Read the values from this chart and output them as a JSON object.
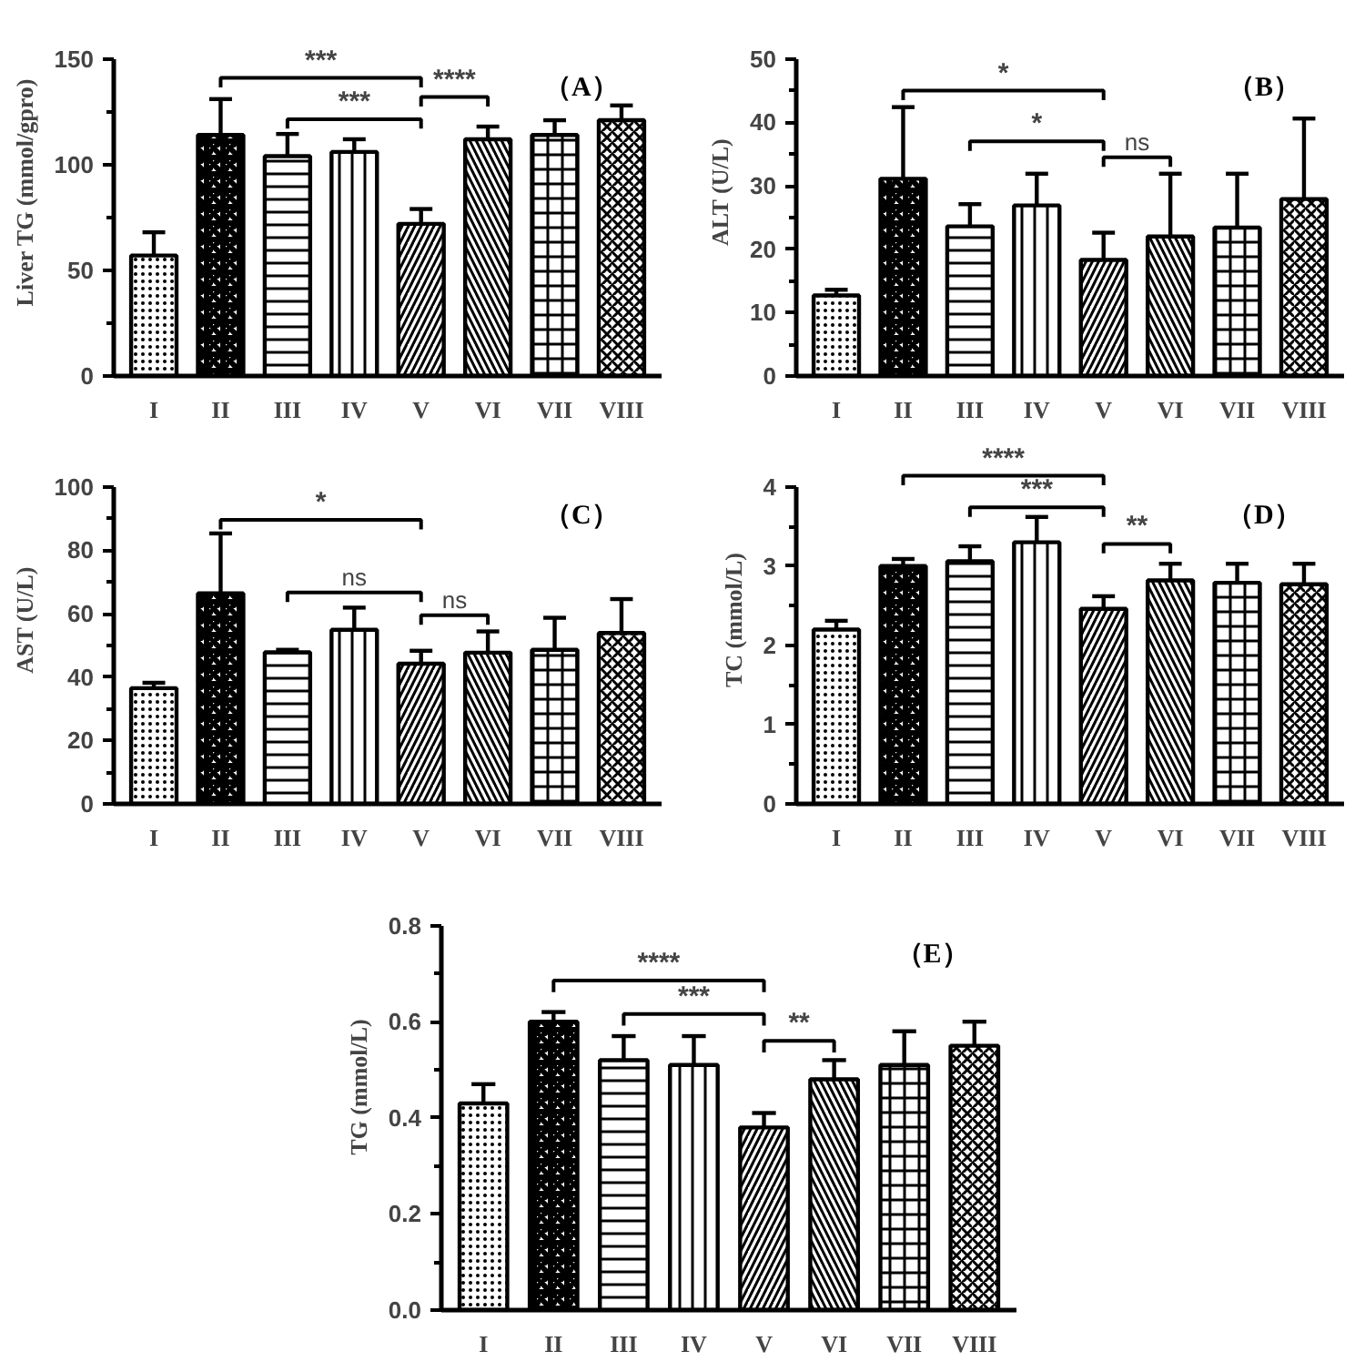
{
  "chart_data": [
    {
      "type": "bar",
      "title": "（A）",
      "ylabel": "Liver TG (mmol/gpro)",
      "categories": [
        "I",
        "II",
        "III",
        "IV",
        "V",
        "VI",
        "VII",
        "VIII"
      ],
      "color": "#000000",
      "values": [
        57,
        114,
        104,
        106,
        72,
        112,
        114,
        121
      ],
      "errors": [
        [
          57,
          68
        ],
        [
          114,
          131
        ],
        [
          104,
          114.5
        ],
        [
          106,
          112
        ],
        [
          72,
          79
        ],
        [
          112,
          118
        ],
        [
          114,
          121
        ],
        [
          121,
          128
        ]
      ],
      "ylim": [
        0,
        150
      ],
      "yticks": [
        0,
        50,
        100,
        150
      ],
      "annotations": [
        "***",
        "***",
        "****"
      ]
    },
    {
      "type": "bar",
      "title": "（B）",
      "ylabel": "ALT (U/L)",
      "categories": [
        "I",
        "II",
        "III",
        "IV",
        "V",
        "VI",
        "VII",
        "VIII"
      ],
      "color": "#000000",
      "values": [
        12.7,
        31.1,
        23.6,
        26.9,
        18.3,
        22.0,
        23.4,
        27.9
      ],
      "errors": [
        [
          12.7,
          13.6
        ],
        [
          31.1,
          42.4
        ],
        [
          23.6,
          27.1
        ],
        [
          26.9,
          31.9
        ],
        [
          18.3,
          22.6
        ],
        [
          22.0,
          31.9
        ],
        [
          23.4,
          31.9
        ],
        [
          27.9,
          40.6
        ]
      ],
      "ylim": [
        0,
        50
      ],
      "yticks": [
        0,
        10,
        20,
        30,
        40,
        50
      ],
      "annotations": [
        "*",
        "*",
        "ns"
      ]
    },
    {
      "type": "bar",
      "title": "（C）",
      "ylabel": "AST (U/L)",
      "categories": [
        "I",
        "II",
        "III",
        "IV",
        "V",
        "VI",
        "VII",
        "VIII"
      ],
      "color": "#000000",
      "values": [
        36.5,
        66.4,
        47.8,
        54.9,
        44.2,
        47.7,
        48.6,
        53.9
      ],
      "errors": [
        [
          36.5,
          38.2
        ],
        [
          66.4,
          85.3
        ],
        [
          47.8,
          48.6
        ],
        [
          54.9,
          61.9
        ],
        [
          44.2,
          48.3
        ],
        [
          47.7,
          54.4
        ],
        [
          48.6,
          58.7
        ],
        [
          53.9,
          64.6
        ]
      ],
      "ylim": [
        0,
        100
      ],
      "yticks": [
        0,
        20,
        40,
        60,
        80,
        100
      ],
      "annotations": [
        "*",
        "ns",
        "ns"
      ]
    },
    {
      "type": "bar",
      "title": "（D）",
      "ylabel": "TC (mmol/L)",
      "categories": [
        "I",
        "II",
        "III",
        "IV",
        "V",
        "VI",
        "VII",
        "VIII"
      ],
      "color": "#000000",
      "values": [
        2.2,
        3.0,
        3.06,
        3.3,
        2.46,
        2.82,
        2.79,
        2.77
      ],
      "errors": [
        [
          2.2,
          2.31
        ],
        [
          3.0,
          3.09
        ],
        [
          3.06,
          3.25
        ],
        [
          3.3,
          3.62
        ],
        [
          2.46,
          2.62
        ],
        [
          2.82,
          3.03
        ],
        [
          2.79,
          3.03
        ],
        [
          2.77,
          3.03
        ]
      ],
      "ylim": [
        0,
        4
      ],
      "yticks": [
        0,
        1,
        2,
        3,
        4
      ],
      "annotations": [
        "****",
        "***",
        "**"
      ]
    },
    {
      "type": "bar",
      "title": "（E）",
      "ylabel": "TG (mmol/L)",
      "categories": [
        "I",
        "II",
        "III",
        "IV",
        "V",
        "VI",
        "VII",
        "VIII"
      ],
      "color": "#000000",
      "values": [
        0.43,
        0.6,
        0.52,
        0.51,
        0.38,
        0.48,
        0.51,
        0.55
      ],
      "errors": [
        [
          0.43,
          0.47
        ],
        [
          0.6,
          0.62
        ],
        [
          0.52,
          0.57
        ],
        [
          0.51,
          0.57
        ],
        [
          0.38,
          0.41
        ],
        [
          0.48,
          0.52
        ],
        [
          0.51,
          0.58
        ],
        [
          0.55,
          0.6
        ]
      ],
      "ylim": [
        0,
        0.8
      ],
      "yticks": [
        {
          "value": 0,
          "label": "0.0"
        },
        0.2,
        0.4,
        0.6,
        0.8
      ],
      "annotations": [
        "****",
        "***",
        "**"
      ]
    }
  ]
}
